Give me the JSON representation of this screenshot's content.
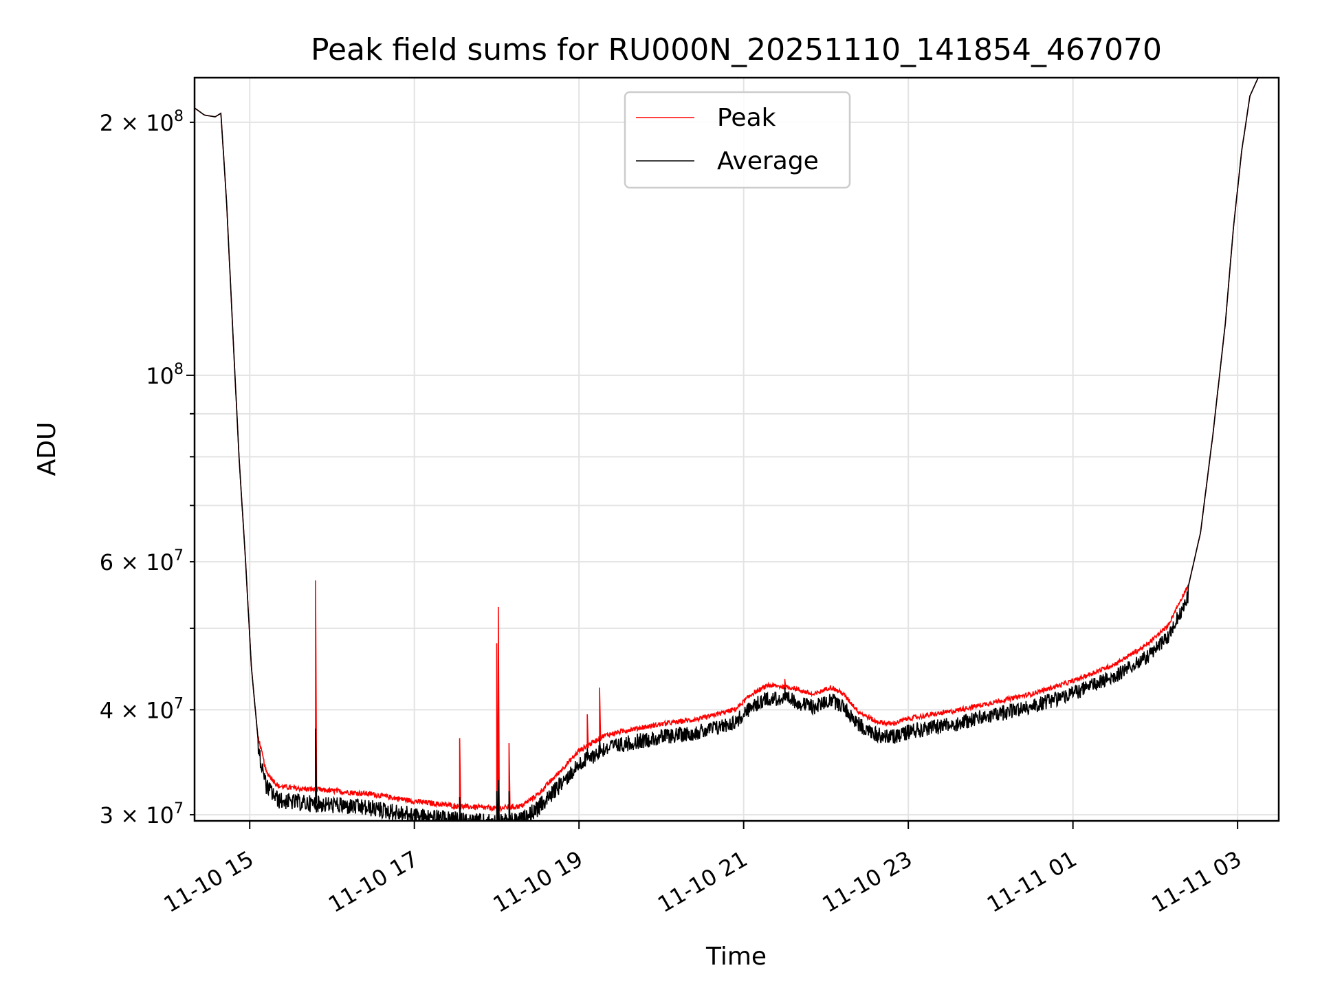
{
  "chart_data": {
    "type": "line",
    "title": "Peak field sums for RU000N_20251110_141854_467070",
    "xlabel": "Time",
    "ylabel": "ADU",
    "yscale": "log",
    "ylim": [
      29500000,
      226000000
    ],
    "xlim_hours": [
      14.33,
      27.5
    ],
    "grid": true,
    "legend_position": "top-center",
    "x_ticks": [
      {
        "label": "11-10 15",
        "hour": 15
      },
      {
        "label": "11-10 17",
        "hour": 17
      },
      {
        "label": "11-10 19",
        "hour": 19
      },
      {
        "label": "11-10 21",
        "hour": 21
      },
      {
        "label": "11-10 23",
        "hour": 23
      },
      {
        "label": "11-11 01",
        "hour": 25
      },
      {
        "label": "11-11 03",
        "hour": 27
      }
    ],
    "y_ticks_major": [
      {
        "mantissa": "",
        "exp": "8",
        "value": 100000000
      }
    ],
    "y_ticks_minor": [
      {
        "mantissa": "3",
        "exp": "7",
        "value": 30000000
      },
      {
        "mantissa": "4",
        "exp": "7",
        "value": 40000000
      },
      {
        "mantissa": "6",
        "exp": "7",
        "value": 60000000
      },
      {
        "mantissa": "2",
        "exp": "8",
        "value": 200000000
      }
    ],
    "y_minor_unlabeled": [
      50000000,
      70000000,
      80000000,
      90000000
    ],
    "series": [
      {
        "name": "Peak",
        "color": "#ff0000"
      },
      {
        "name": "Average",
        "color": "#000000"
      }
    ],
    "trend_points": [
      [
        14.33,
        208000000
      ],
      [
        14.45,
        204000000
      ],
      [
        14.58,
        203000000
      ],
      [
        14.65,
        205000000
      ],
      [
        14.72,
        160000000
      ],
      [
        14.8,
        110000000
      ],
      [
        14.87,
        80000000
      ],
      [
        14.95,
        60000000
      ],
      [
        15.02,
        45000000
      ],
      [
        15.1,
        37000000
      ],
      [
        15.2,
        33500000
      ],
      [
        15.35,
        32200000
      ],
      [
        15.6,
        32000000
      ],
      [
        16.0,
        31800000
      ],
      [
        16.5,
        31500000
      ],
      [
        17.0,
        30900000
      ],
      [
        17.5,
        30500000
      ],
      [
        18.0,
        30300000
      ],
      [
        18.3,
        30500000
      ],
      [
        18.5,
        31500000
      ],
      [
        18.7,
        33000000
      ],
      [
        19.0,
        35500000
      ],
      [
        19.3,
        37000000
      ],
      [
        19.6,
        37600000
      ],
      [
        20.0,
        38200000
      ],
      [
        20.5,
        38800000
      ],
      [
        20.9,
        39800000
      ],
      [
        21.1,
        41500000
      ],
      [
        21.3,
        42500000
      ],
      [
        21.6,
        42200000
      ],
      [
        21.85,
        41400000
      ],
      [
        22.05,
        42300000
      ],
      [
        22.2,
        41600000
      ],
      [
        22.4,
        39500000
      ],
      [
        22.6,
        38500000
      ],
      [
        22.8,
        38200000
      ],
      [
        23.0,
        38800000
      ],
      [
        23.5,
        39500000
      ],
      [
        24.0,
        40500000
      ],
      [
        24.5,
        41500000
      ],
      [
        25.0,
        43000000
      ],
      [
        25.5,
        45000000
      ],
      [
        25.9,
        47500000
      ],
      [
        26.15,
        50000000
      ],
      [
        26.4,
        56000000
      ],
      [
        26.55,
        65000000
      ],
      [
        26.7,
        85000000
      ],
      [
        26.85,
        115000000
      ],
      [
        26.95,
        150000000
      ],
      [
        27.05,
        185000000
      ],
      [
        27.15,
        215000000
      ],
      [
        27.25,
        226000000
      ],
      [
        27.5,
        226000000
      ]
    ],
    "noise_amplitude": 1500000,
    "spikes": [
      {
        "hour": 15.8,
        "peak": 57000000,
        "average": 38000000
      },
      {
        "hour": 17.55,
        "peak": 37000000,
        "average": 31500000
      },
      {
        "hour": 18.0,
        "peak": 48000000,
        "average": 32000000
      },
      {
        "hour": 18.02,
        "peak": 53000000,
        "average": 33000000
      },
      {
        "hour": 18.15,
        "peak": 36500000,
        "average": 32000000
      },
      {
        "hour": 19.1,
        "peak": 39500000,
        "average": 36000000
      },
      {
        "hour": 19.25,
        "peak": 42500000,
        "average": 37000000
      },
      {
        "hour": 21.5,
        "peak": 43500000,
        "average": 42500000
      }
    ]
  }
}
